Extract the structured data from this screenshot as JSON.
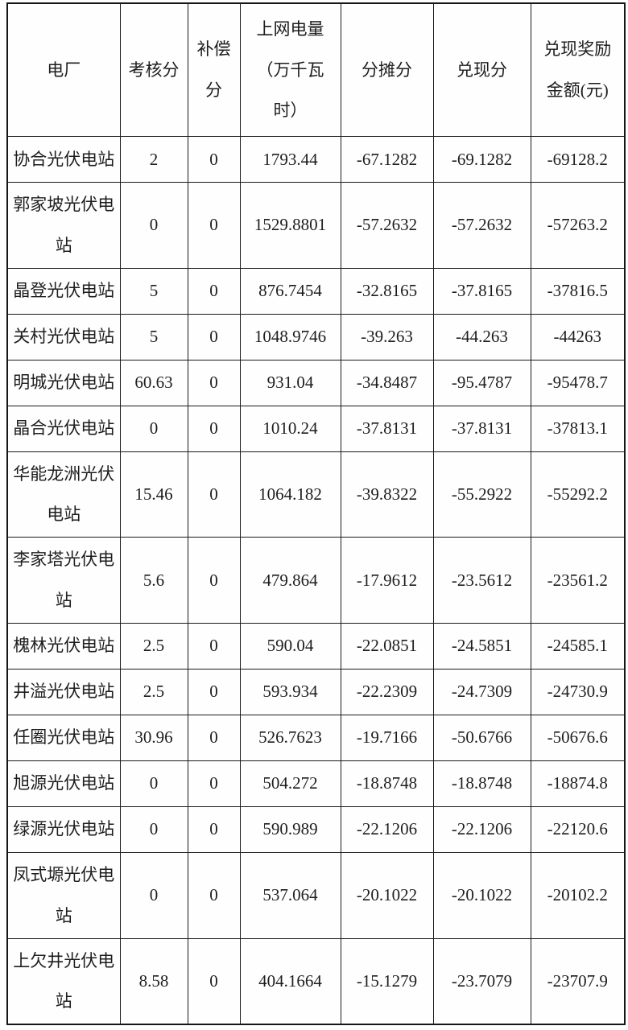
{
  "table": {
    "headers": [
      {
        "id": "plant",
        "label": "电厂"
      },
      {
        "id": "assessment_score",
        "label": "考核分"
      },
      {
        "id": "compensation_score",
        "label": "补偿\n分"
      },
      {
        "id": "grid_energy",
        "label": "上网电量\n（万千瓦\n时）"
      },
      {
        "id": "allocation_score",
        "label": "分摊分"
      },
      {
        "id": "cash_score",
        "label": "兑现分"
      },
      {
        "id": "reward_amount",
        "label": "兑现奖励\n金额(元)"
      }
    ],
    "rows": [
      {
        "plant": "协合光伏电站",
        "assessment_score": "2",
        "compensation_score": "0",
        "grid_energy": "1793.44",
        "allocation_score": "-67.1282",
        "cash_score": "-69.1282",
        "reward_amount": "-69128.2"
      },
      {
        "plant": "郭家坡光伏电站",
        "assessment_score": "0",
        "compensation_score": "0",
        "grid_energy": "1529.8801",
        "allocation_score": "-57.2632",
        "cash_score": "-57.2632",
        "reward_amount": "-57263.2"
      },
      {
        "plant": "晶登光伏电站",
        "assessment_score": "5",
        "compensation_score": "0",
        "grid_energy": "876.7454",
        "allocation_score": "-32.8165",
        "cash_score": "-37.8165",
        "reward_amount": "-37816.5"
      },
      {
        "plant": "关村光伏电站",
        "assessment_score": "5",
        "compensation_score": "0",
        "grid_energy": "1048.9746",
        "allocation_score": "-39.263",
        "cash_score": "-44.263",
        "reward_amount": "-44263"
      },
      {
        "plant": "明城光伏电站",
        "assessment_score": "60.63",
        "compensation_score": "0",
        "grid_energy": "931.04",
        "allocation_score": "-34.8487",
        "cash_score": "-95.4787",
        "reward_amount": "-95478.7"
      },
      {
        "plant": "晶合光伏电站",
        "assessment_score": "0",
        "compensation_score": "0",
        "grid_energy": "1010.24",
        "allocation_score": "-37.8131",
        "cash_score": "-37.8131",
        "reward_amount": "-37813.1"
      },
      {
        "plant": "华能龙洲光伏电站",
        "assessment_score": "15.46",
        "compensation_score": "0",
        "grid_energy": "1064.182",
        "allocation_score": "-39.8322",
        "cash_score": "-55.2922",
        "reward_amount": "-55292.2"
      },
      {
        "plant": "李家塔光伏电站",
        "assessment_score": "5.6",
        "compensation_score": "0",
        "grid_energy": "479.864",
        "allocation_score": "-17.9612",
        "cash_score": "-23.5612",
        "reward_amount": "-23561.2"
      },
      {
        "plant": "槐林光伏电站",
        "assessment_score": "2.5",
        "compensation_score": "0",
        "grid_energy": "590.04",
        "allocation_score": "-22.0851",
        "cash_score": "-24.5851",
        "reward_amount": "-24585.1"
      },
      {
        "plant": "井溢光伏电站",
        "assessment_score": "2.5",
        "compensation_score": "0",
        "grid_energy": "593.934",
        "allocation_score": "-22.2309",
        "cash_score": "-24.7309",
        "reward_amount": "-24730.9"
      },
      {
        "plant": "任圈光伏电站",
        "assessment_score": "30.96",
        "compensation_score": "0",
        "grid_energy": "526.7623",
        "allocation_score": "-19.7166",
        "cash_score": "-50.6766",
        "reward_amount": "-50676.6"
      },
      {
        "plant": "旭源光伏电站",
        "assessment_score": "0",
        "compensation_score": "0",
        "grid_energy": "504.272",
        "allocation_score": "-18.8748",
        "cash_score": "-18.8748",
        "reward_amount": "-18874.8"
      },
      {
        "plant": "绿源光伏电站",
        "assessment_score": "0",
        "compensation_score": "0",
        "grid_energy": "590.989",
        "allocation_score": "-22.1206",
        "cash_score": "-22.1206",
        "reward_amount": "-22120.6"
      },
      {
        "plant": "凤式塬光伏电站",
        "assessment_score": "0",
        "compensation_score": "0",
        "grid_energy": "537.064",
        "allocation_score": "-20.1022",
        "cash_score": "-20.1022",
        "reward_amount": "-20102.2"
      },
      {
        "plant": "上欠井光伏电站",
        "assessment_score": "8.58",
        "compensation_score": "0",
        "grid_energy": "404.1664",
        "allocation_score": "-15.1279",
        "cash_score": "-23.7079",
        "reward_amount": "-23707.9"
      }
    ]
  }
}
